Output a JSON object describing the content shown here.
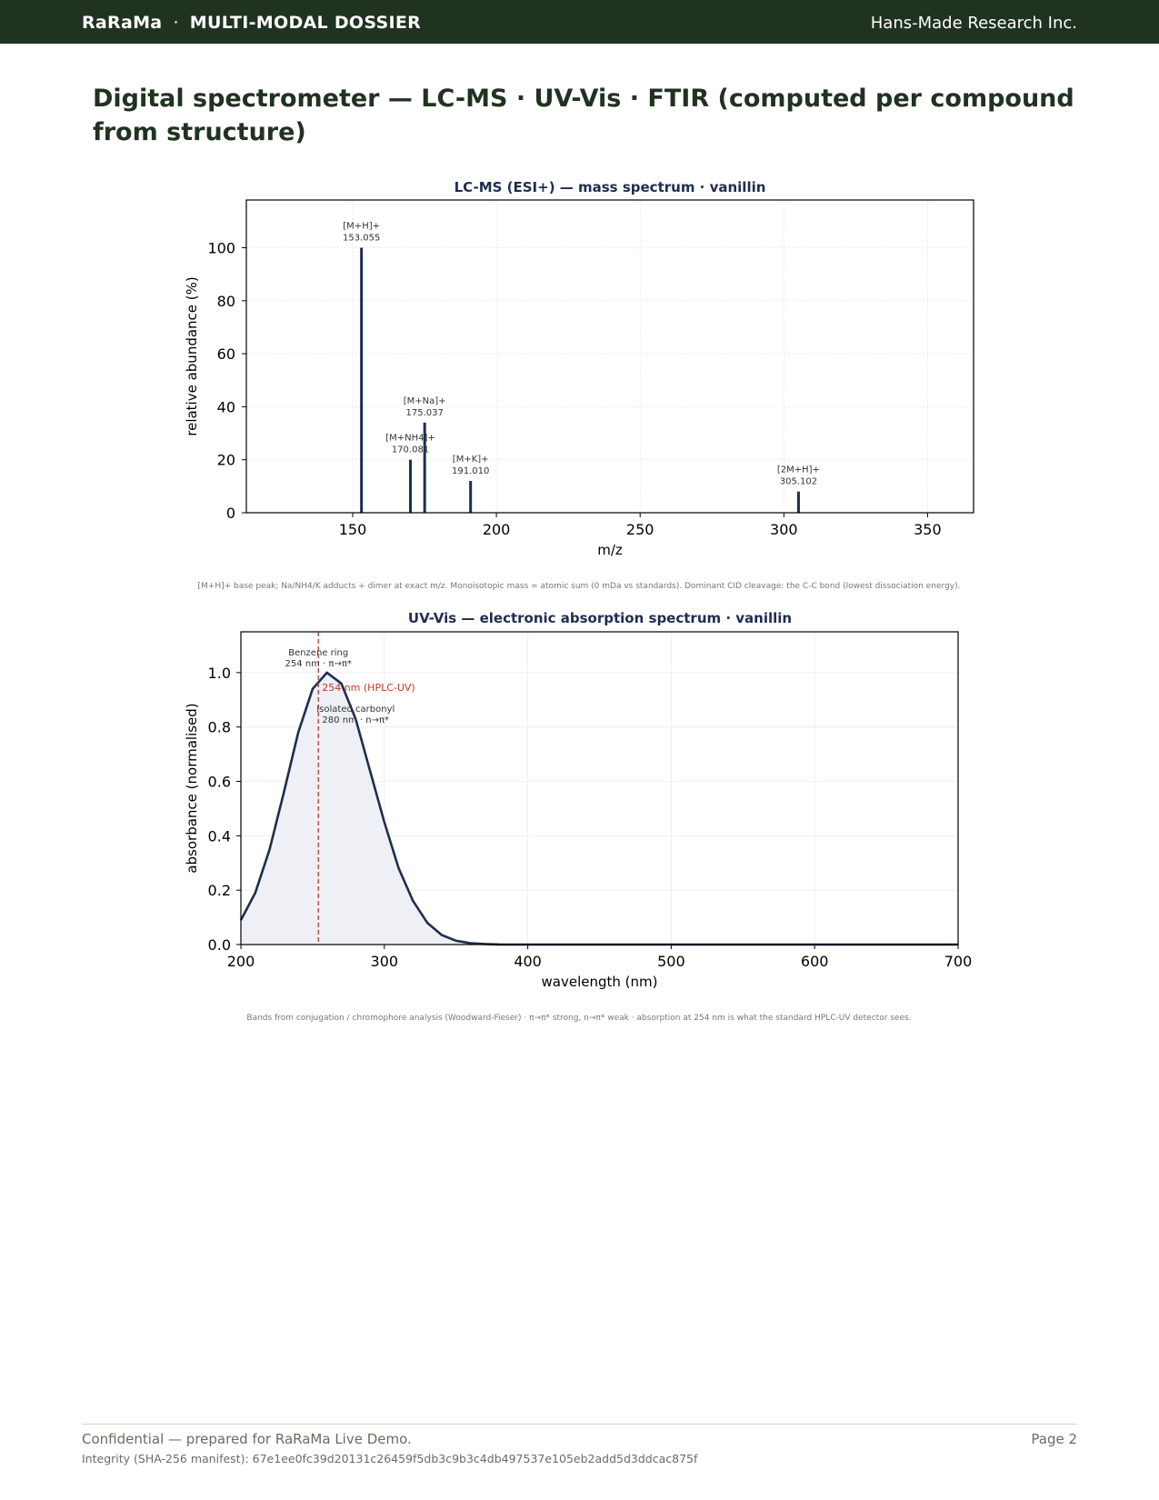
{
  "header": {
    "brand": "RaRaMa",
    "separator": "·",
    "section": "MULTI-MODAL DOSSIER",
    "organization": "Hans-Made Research Inc."
  },
  "page_title": "Digital spectrometer — LC-MS · UV-Vis · FTIR (computed per compound from structure)",
  "chart_data": [
    {
      "type": "bar",
      "title": "LC-MS (ESI+) — mass spectrum · vanillin",
      "xlabel": "m/z",
      "ylabel": "relative abundance (%)",
      "xlim": [
        113,
        366
      ],
      "ylim": [
        0,
        118
      ],
      "xticks": [
        150,
        200,
        250,
        300,
        350
      ],
      "yticks": [
        0,
        20,
        40,
        60,
        80,
        100
      ],
      "grid": true,
      "peaks": [
        {
          "label": "[M+H]+",
          "mz": 153.055,
          "mz_text": "153.055",
          "abundance": 100
        },
        {
          "label": "[M+NH4]+",
          "mz": 170.081,
          "mz_text": "170.081",
          "abundance": 20
        },
        {
          "label": "[M+Na]+",
          "mz": 175.037,
          "mz_text": "175.037",
          "abundance": 34
        },
        {
          "label": "[M+K]+",
          "mz": 191.01,
          "mz_text": "191.010",
          "abundance": 12
        },
        {
          "label": "[2M+H]+",
          "mz": 305.102,
          "mz_text": "305.102",
          "abundance": 8
        }
      ],
      "color": "#1f2d50",
      "caption": "[M+H]+ base peak; Na/NH4/K adducts + dimer at exact m/z. Monoisotopic mass = atomic sum (0 mDa vs standards). Dominant CID cleavage: the C-C bond (lowest dissociation energy)."
    },
    {
      "type": "area",
      "title": "UV-Vis — electronic absorption spectrum · vanillin",
      "xlabel": "wavelength (nm)",
      "ylabel": "absorbance (normalised)",
      "xlim": [
        200,
        700
      ],
      "ylim": [
        0,
        1.15
      ],
      "xticks": [
        200,
        300,
        400,
        500,
        600,
        700
      ],
      "yticks": [
        0.0,
        0.2,
        0.4,
        0.6,
        0.8,
        1.0
      ],
      "ytick_labels": [
        "0.0",
        "0.2",
        "0.4",
        "0.6",
        "0.8",
        "1.0"
      ],
      "grid": true,
      "series": [
        {
          "x": [
            200,
            210,
            220,
            230,
            240,
            250,
            260,
            270,
            280,
            290,
            300,
            310,
            320,
            330,
            340,
            350,
            360,
            370,
            380,
            400,
            450,
            500,
            600,
            700
          ],
          "values": [
            0.09,
            0.19,
            0.35,
            0.56,
            0.78,
            0.94,
            1.0,
            0.96,
            0.83,
            0.64,
            0.45,
            0.28,
            0.16,
            0.08,
            0.035,
            0.014,
            0.005,
            0.002,
            0.0005,
            0.0,
            0.0,
            0.0,
            0.0,
            0.0
          ]
        }
      ],
      "bands": [
        {
          "name": "Benzene ring",
          "detail": "254 nm · π→π*",
          "wavelength": 254
        },
        {
          "name": "Isolated carbonyl",
          "detail": "280 nm · n→π*",
          "wavelength": 280
        }
      ],
      "reference_line": {
        "x": 254,
        "label": "254 nm (HPLC-UV)",
        "color": "#c0392b"
      },
      "color": "#1f2d50",
      "fill": "#eef0f5",
      "caption": "Bands from conjugation / chromophore analysis (Woodward-Fieser) · π→π* strong, n→π* weak · absorption at 254 nm is what the standard HPLC-UV detector sees."
    }
  ],
  "footer": {
    "confidential": "Confidential — prepared for RaRaMa Live Demo.",
    "page": "Page 2",
    "integrity": "Integrity (SHA-256 manifest): 67e1ee0fc39d20131c26459f5db3c9b3c4db497537e105eb2add5d3ddcac875f"
  }
}
